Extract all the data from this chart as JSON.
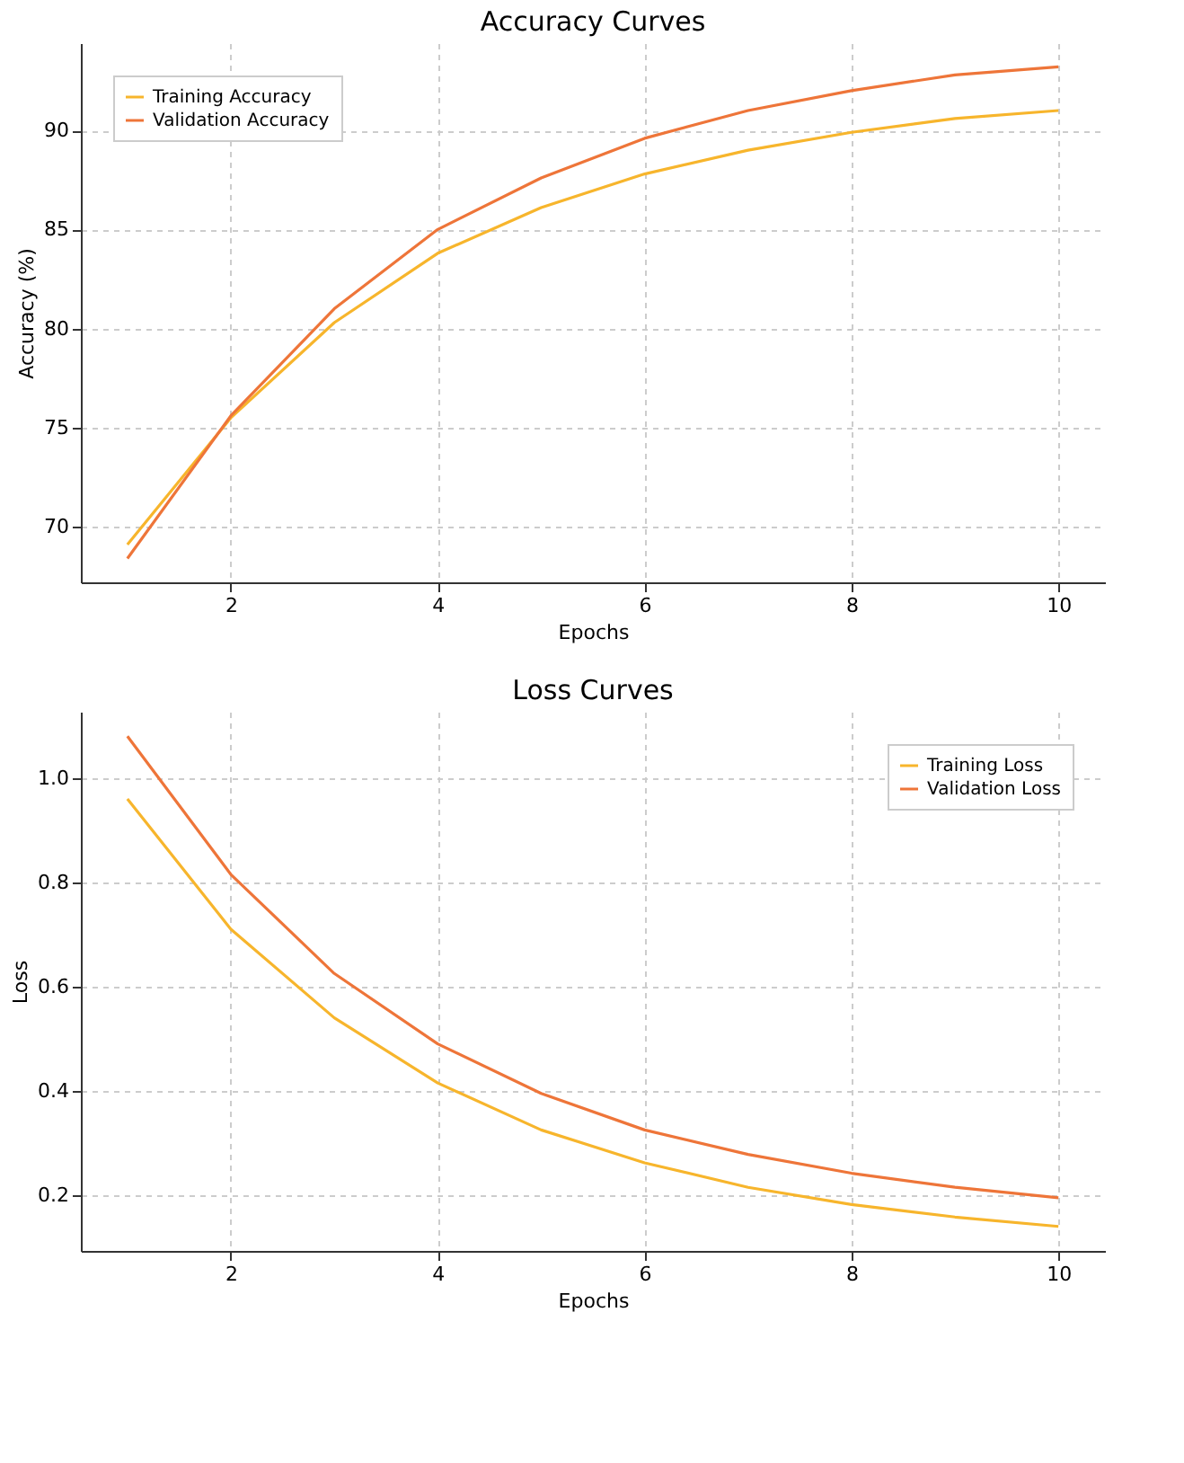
{
  "chart_data": [
    {
      "type": "line",
      "title": "Accuracy Curves",
      "xlabel": "Epochs",
      "ylabel": "Accuracy (%)",
      "x": [
        1,
        2,
        3,
        4,
        5,
        6,
        7,
        8,
        9,
        10
      ],
      "series": [
        {
          "name": "Training Accuracy",
          "color": "#f7b52c",
          "values": [
            69.1,
            75.5,
            80.3,
            83.8,
            86.1,
            87.8,
            89.0,
            89.9,
            90.6,
            91.0
          ]
        },
        {
          "name": "Validation Accuracy",
          "color": "#ee7539",
          "values": [
            68.4,
            75.6,
            81.0,
            85.0,
            87.6,
            89.6,
            91.0,
            92.0,
            92.8,
            93.2
          ]
        }
      ],
      "xlim": [
        0.55,
        10.45
      ],
      "xticks": [
        2,
        4,
        6,
        8,
        10
      ],
      "ylim": [
        67.2,
        94.4
      ],
      "yticks": [
        70,
        75,
        80,
        85,
        90
      ],
      "grid": true,
      "legend": "top left",
      "marker": "none",
      "line_style": "solid"
    },
    {
      "type": "line",
      "title": "Loss Curves",
      "xlabel": "Epochs",
      "ylabel": "Loss",
      "x": [
        1,
        2,
        3,
        4,
        5,
        6,
        7,
        8,
        9,
        10
      ],
      "series": [
        {
          "name": "Training Loss",
          "color": "#f7b52c",
          "values": [
            0.96,
            0.71,
            0.54,
            0.415,
            0.325,
            0.262,
            0.215,
            0.182,
            0.158,
            0.14
          ]
        },
        {
          "name": "Validation Loss",
          "color": "#ee7539",
          "values": [
            1.08,
            0.815,
            0.625,
            0.49,
            0.395,
            0.325,
            0.278,
            0.242,
            0.215,
            0.195
          ]
        }
      ],
      "xlim": [
        0.55,
        10.45
      ],
      "xticks": [
        2,
        4,
        6,
        8,
        10
      ],
      "ylim": [
        0.093,
        1.127
      ],
      "yticks": [
        0.2,
        0.4,
        0.6,
        0.8,
        {
          "value": 1,
          "label": "1.0"
        }
      ],
      "grid": true,
      "legend": "top right",
      "marker": "none",
      "line_style": "solid"
    }
  ]
}
